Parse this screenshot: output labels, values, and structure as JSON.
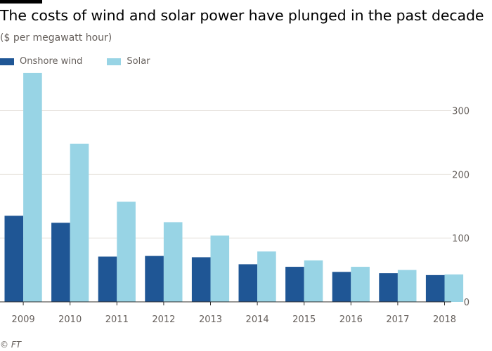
{
  "subtitle": "($ per megawatt hour)",
  "source": "© FT",
  "colors": {
    "onshore_wind": "#1f5695",
    "solar": "#98d4e5",
    "grid": "#e8e4df",
    "axis": "#33302e",
    "tick_text": "#66605c"
  },
  "chart_data": {
    "type": "bar",
    "title": "The costs of wind and solar power have plunged in the past decade",
    "xlabel": "",
    "ylabel": "($ per megawatt hour)",
    "ylim": [
      0,
      360
    ],
    "y_ticks": [
      0,
      100,
      200,
      300
    ],
    "y_axis_side": "right",
    "grid": true,
    "legend_placement": "top-left",
    "categories": [
      "2009",
      "2010",
      "2011",
      "2012",
      "2013",
      "2014",
      "2015",
      "2016",
      "2017",
      "2018"
    ],
    "series": [
      {
        "name": "Onshore wind",
        "color": "#1f5695",
        "values": [
          135,
          124,
          71,
          72,
          70,
          59,
          55,
          47,
          45,
          42
        ]
      },
      {
        "name": "Solar",
        "color": "#98d4e5",
        "values": [
          359,
          248,
          157,
          125,
          104,
          79,
          65,
          55,
          50,
          43
        ]
      }
    ]
  }
}
